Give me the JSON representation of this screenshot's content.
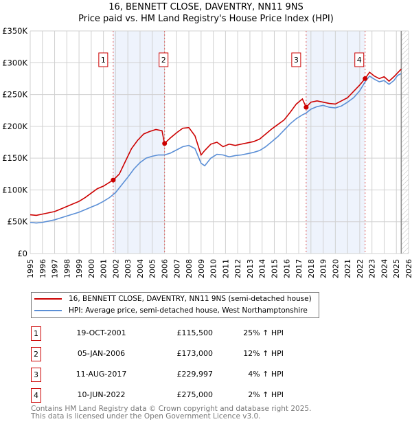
{
  "title": "16, BENNETT CLOSE, DAVENTRY, NN11 9NS",
  "subtitle": "Price paid vs. HM Land Registry's House Price Index (HPI)",
  "chart_data": {
    "type": "line",
    "title": "16, BENNETT CLOSE, DAVENTRY, NN11 9NS",
    "xlim": [
      1995,
      2026
    ],
    "ylim": [
      0,
      350000
    ],
    "yticks": [
      0,
      50000,
      100000,
      150000,
      200000,
      250000,
      300000,
      350000
    ],
    "ytick_labels": [
      "£0",
      "£50K",
      "£100K",
      "£150K",
      "£200K",
      "£250K",
      "£300K",
      "£350K"
    ],
    "xticks": [
      1995,
      1996,
      1997,
      1998,
      1999,
      2000,
      2001,
      2002,
      2003,
      2004,
      2005,
      2006,
      2007,
      2008,
      2009,
      2010,
      2011,
      2012,
      2013,
      2014,
      2015,
      2016,
      2017,
      2018,
      2019,
      2020,
      2021,
      2022,
      2023,
      2024,
      2025,
      2026
    ],
    "grid": true,
    "shaded_ranges": [
      [
        2001.8,
        2006.01
      ],
      [
        2017.61,
        2022.44
      ]
    ],
    "hatched_from": 2025.4,
    "series": [
      {
        "name": "16, BENNETT CLOSE, DAVENTRY, NN11 9NS (semi-detached house)",
        "color": "#cc0000",
        "x": [
          1995,
          1995.5,
          1996,
          1996.5,
          1997,
          1997.5,
          1998,
          1998.5,
          1999,
          1999.5,
          2000,
          2000.5,
          2001,
          2001.5,
          2001.8,
          2002.3,
          2002.8,
          2003.3,
          2003.8,
          2004.3,
          2004.8,
          2005.3,
          2005.8,
          2006.0,
          2006.5,
          2007,
          2007.5,
          2008,
          2008.5,
          2009,
          2009.3,
          2009.8,
          2010.3,
          2010.8,
          2011.3,
          2011.8,
          2012.3,
          2012.8,
          2013.3,
          2013.8,
          2014.3,
          2014.8,
          2015.3,
          2015.8,
          2016.3,
          2016.8,
          2017.3,
          2017.61,
          2018,
          2018.5,
          2019,
          2019.5,
          2020,
          2020.5,
          2021,
          2021.5,
          2022,
          2022.44,
          2022.8,
          2023.2,
          2023.6,
          2024,
          2024.4,
          2024.8,
          2025.1,
          2025.4
        ],
        "y": [
          61000,
          60000,
          62000,
          64000,
          66000,
          70000,
          74000,
          78000,
          82000,
          88000,
          95000,
          102000,
          106000,
          112000,
          115500,
          125000,
          145000,
          165000,
          178000,
          188000,
          192000,
          195000,
          193000,
          173000,
          182000,
          190000,
          197000,
          198000,
          185000,
          155000,
          162000,
          172000,
          175000,
          168000,
          172000,
          170000,
          172000,
          174000,
          176000,
          180000,
          188000,
          196000,
          203000,
          210000,
          222000,
          235000,
          243000,
          229997,
          238000,
          240000,
          238000,
          236000,
          235000,
          240000,
          245000,
          255000,
          265000,
          275000,
          285000,
          279000,
          275000,
          278000,
          271000,
          278000,
          284000,
          290000
        ]
      },
      {
        "name": "HPI: Average price, semi-detached house, West Northamptonshire",
        "color": "#5b8fd6",
        "x": [
          1995,
          1995.5,
          1996,
          1996.5,
          1997,
          1997.5,
          1998,
          1998.5,
          1999,
          1999.5,
          2000,
          2000.5,
          2001,
          2001.5,
          2002,
          2002.5,
          2003,
          2003.5,
          2004,
          2004.5,
          2005,
          2005.5,
          2006,
          2006.5,
          2007,
          2007.5,
          2008,
          2008.5,
          2009,
          2009.3,
          2009.8,
          2010.3,
          2010.8,
          2011.3,
          2011.8,
          2012.3,
          2012.8,
          2013.3,
          2013.8,
          2014.3,
          2014.8,
          2015.3,
          2015.8,
          2016.3,
          2016.8,
          2017.3,
          2017.61,
          2018,
          2018.5,
          2019,
          2019.5,
          2020,
          2020.5,
          2021,
          2021.5,
          2022,
          2022.44,
          2022.8,
          2023.2,
          2023.6,
          2024,
          2024.4,
          2024.8,
          2025.1,
          2025.4
        ],
        "y": [
          49000,
          48000,
          49000,
          51000,
          53000,
          56000,
          59000,
          62000,
          65000,
          69000,
          73000,
          77000,
          82000,
          88000,
          96000,
          108000,
          120000,
          133000,
          143000,
          150000,
          153000,
          155000,
          155000,
          158000,
          163000,
          168000,
          170000,
          165000,
          142000,
          138000,
          150000,
          156000,
          155000,
          152000,
          154000,
          155000,
          157000,
          159000,
          162000,
          168000,
          176000,
          184000,
          194000,
          204000,
          212000,
          218000,
          221000,
          227000,
          231000,
          233000,
          230000,
          229000,
          232000,
          238000,
          245000,
          256000,
          270000,
          279000,
          274000,
          270000,
          272000,
          266000,
          272000,
          280000,
          283000
        ]
      }
    ],
    "annotations": [
      {
        "label": "1",
        "x": 2001.8,
        "y": 115500
      },
      {
        "label": "2",
        "x": 2006.01,
        "y": 173000
      },
      {
        "label": "3",
        "x": 2017.61,
        "y": 229997
      },
      {
        "label": "4",
        "x": 2022.44,
        "y": 275000
      }
    ]
  },
  "legend": {
    "property": "16, BENNETT CLOSE, DAVENTRY, NN11 9NS (semi-detached house)",
    "hpi": "HPI: Average price, semi-detached house, West Northamptonshire"
  },
  "sales": [
    {
      "num": "1",
      "date": "19-OCT-2001",
      "price": "£115,500",
      "hpi": "25% ↑ HPI"
    },
    {
      "num": "2",
      "date": "05-JAN-2006",
      "price": "£173,000",
      "hpi": "12% ↑ HPI"
    },
    {
      "num": "3",
      "date": "11-AUG-2017",
      "price": "£229,997",
      "hpi": "4% ↑ HPI"
    },
    {
      "num": "4",
      "date": "10-JUN-2022",
      "price": "£275,000",
      "hpi": "2% ↑ HPI"
    }
  ],
  "footer": [
    "Contains HM Land Registry data © Crown copyright and database right 2025.",
    "This data is licensed under the Open Government Licence v3.0."
  ]
}
